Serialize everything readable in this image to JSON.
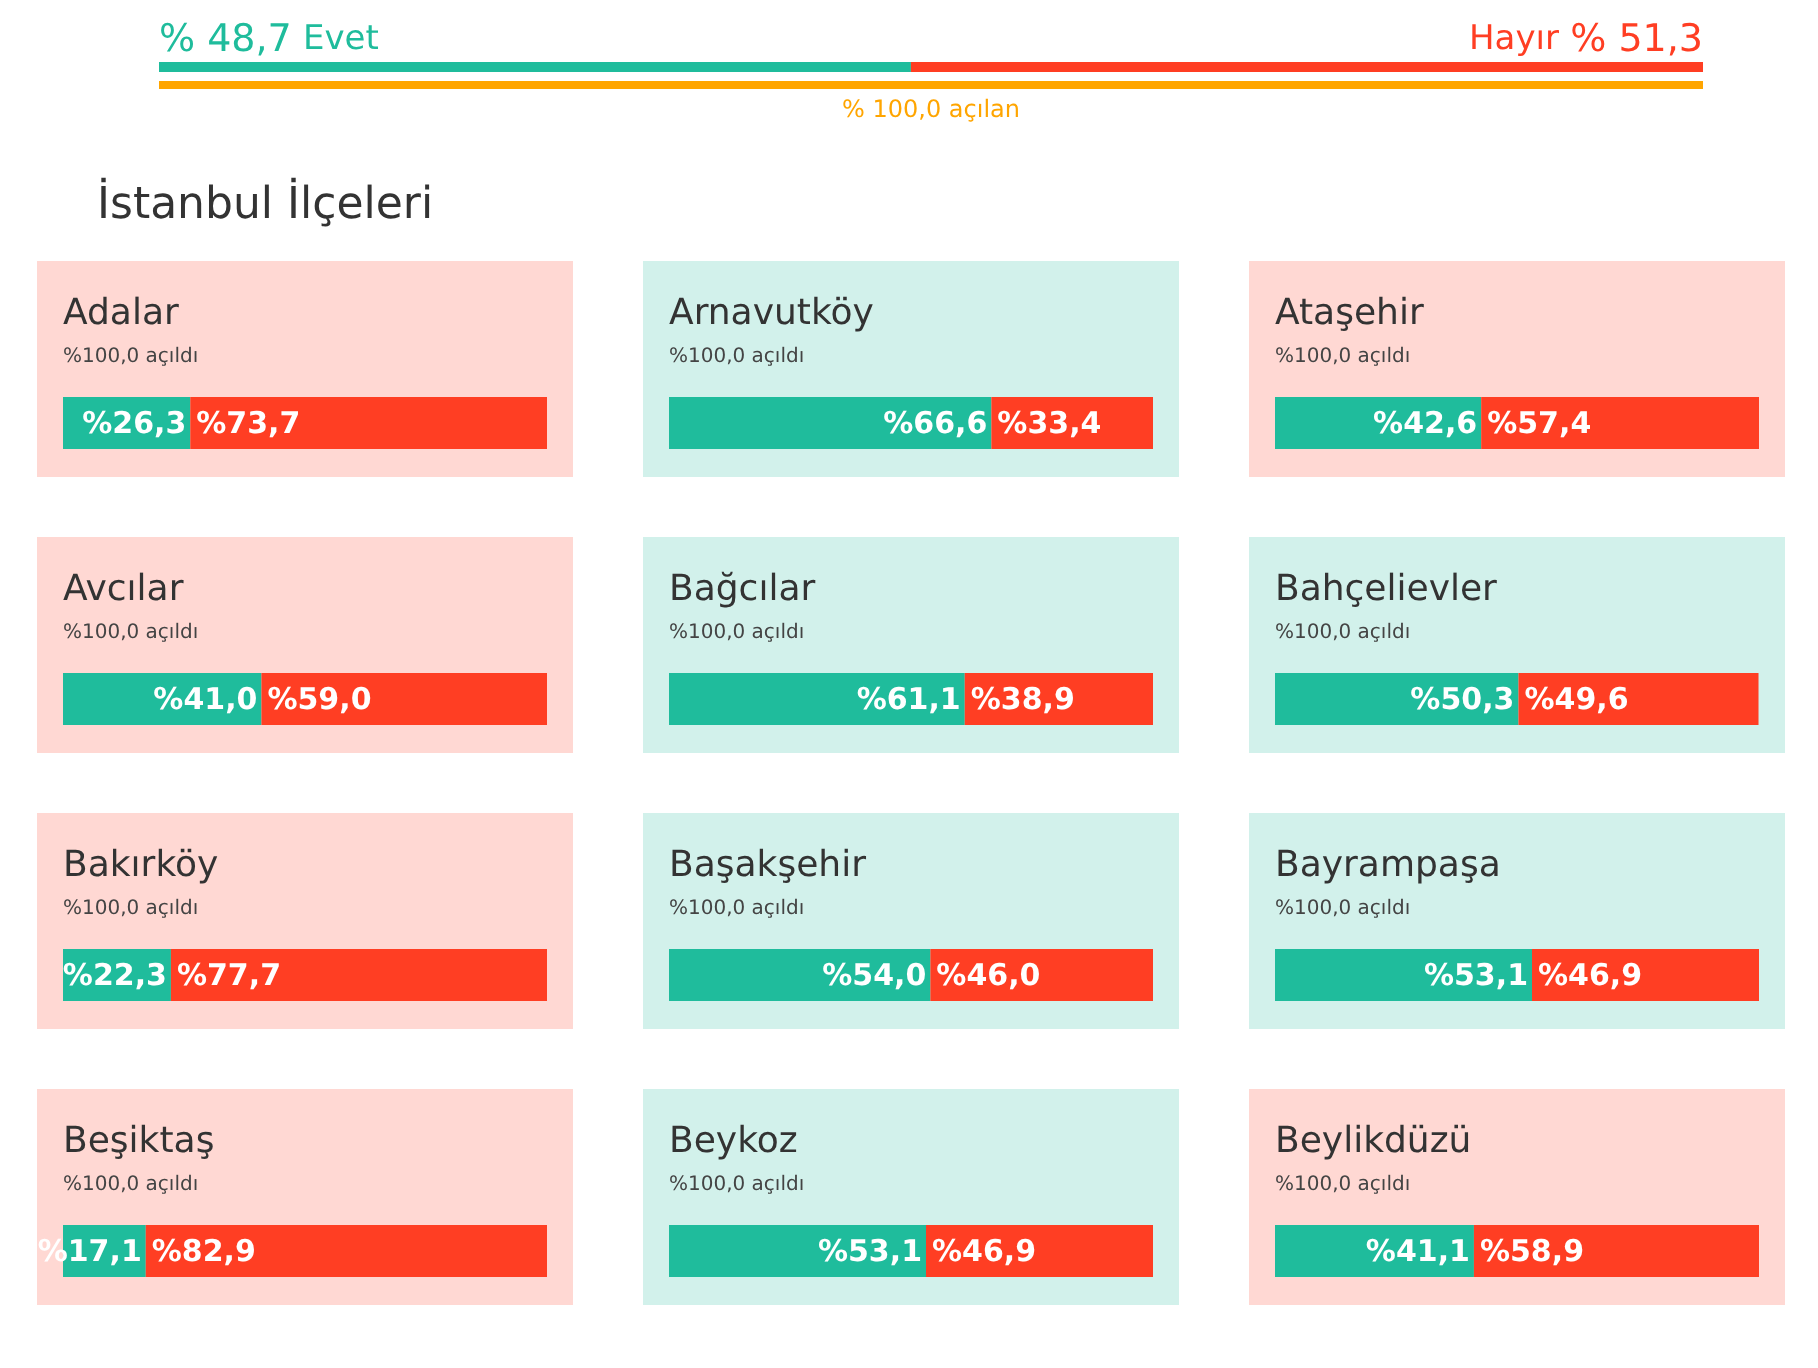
{
  "chart_data": [
    {
      "type": "bar",
      "orientation": "horizontal",
      "stacked": true,
      "categories": [
        null,
        null
      ],
      "xlim": [
        0,
        100
      ],
      "tick_labels": false,
      "annotations": [
        "İstanbul İlçeleri"
      ],
      "series": [
        {
          "name": "Evet",
          "color": "#1fbc9c",
          "values": [
            48.7,
            null
          ],
          "value_labels": [
            "% 48,7",
            null
          ]
        },
        {
          "name": "Hayır",
          "color": "#ff3e23",
          "values": [
            51.3,
            null
          ],
          "value_labels": [
            "% 51,3",
            null
          ]
        },
        {
          "color": "#ffa500",
          "values": [
            null,
            100
          ],
          "value_labels": [
            null,
            "% 100,0 açılan"
          ]
        }
      ]
    },
    {
      "type": "bar",
      "orientation": "horizontal",
      "stacked": true,
      "title": "Adalar",
      "subtitle": "%100,0 açıldı",
      "categories": [
        null
      ],
      "xlim": [
        0,
        100
      ],
      "tick_labels": false,
      "series": [
        {
          "color": "#1fbc9c",
          "values": [
            26.3
          ],
          "value_labels": [
            "%26,3"
          ]
        },
        {
          "color": "#ff3e23",
          "values": [
            73.7
          ],
          "value_labels": [
            "%73,7"
          ]
        }
      ]
    },
    {
      "type": "bar",
      "orientation": "horizontal",
      "stacked": true,
      "title": "Arnavutköy",
      "subtitle": "%100,0 açıldı",
      "categories": [
        null
      ],
      "xlim": [
        0,
        100
      ],
      "tick_labels": false,
      "series": [
        {
          "color": "#1fbc9c",
          "values": [
            66.6
          ],
          "value_labels": [
            "%66,6"
          ]
        },
        {
          "color": "#ff3e23",
          "values": [
            33.4
          ],
          "value_labels": [
            "%33,4"
          ]
        }
      ]
    },
    {
      "type": "bar",
      "orientation": "horizontal",
      "stacked": true,
      "title": "Ataşehir",
      "subtitle": "%100,0 açıldı",
      "categories": [
        null
      ],
      "xlim": [
        0,
        100
      ],
      "tick_labels": false,
      "series": [
        {
          "color": "#1fbc9c",
          "values": [
            42.6
          ],
          "value_labels": [
            "%42,6"
          ]
        },
        {
          "color": "#ff3e23",
          "values": [
            57.4
          ],
          "value_labels": [
            "%57,4"
          ]
        }
      ]
    },
    {
      "type": "bar",
      "orientation": "horizontal",
      "stacked": true,
      "title": "Avcılar",
      "subtitle": "%100,0 açıldı",
      "categories": [
        null
      ],
      "xlim": [
        0,
        100
      ],
      "tick_labels": false,
      "series": [
        {
          "color": "#1fbc9c",
          "values": [
            41.0
          ],
          "value_labels": [
            "%41,0"
          ]
        },
        {
          "color": "#ff3e23",
          "values": [
            59.0
          ],
          "value_labels": [
            "%59,0"
          ]
        }
      ]
    },
    {
      "type": "bar",
      "orientation": "horizontal",
      "stacked": true,
      "title": "Bağcılar",
      "subtitle": "%100,0 açıldı",
      "categories": [
        null
      ],
      "xlim": [
        0,
        100
      ],
      "tick_labels": false,
      "series": [
        {
          "color": "#1fbc9c",
          "values": [
            61.1
          ],
          "value_labels": [
            "%61,1"
          ]
        },
        {
          "color": "#ff3e23",
          "values": [
            38.9
          ],
          "value_labels": [
            "%38,9"
          ]
        }
      ]
    },
    {
      "type": "bar",
      "orientation": "horizontal",
      "stacked": true,
      "title": "Bahçelievler",
      "subtitle": "%100,0 açıldı",
      "categories": [
        null
      ],
      "xlim": [
        0,
        100
      ],
      "tick_labels": false,
      "series": [
        {
          "color": "#1fbc9c",
          "values": [
            50.3
          ],
          "value_labels": [
            "%50,3"
          ]
        },
        {
          "color": "#ff3e23",
          "values": [
            49.6
          ],
          "value_labels": [
            "%49,6"
          ]
        }
      ]
    },
    {
      "type": "bar",
      "orientation": "horizontal",
      "stacked": true,
      "title": "Bakırköy",
      "subtitle": "%100,0 açıldı",
      "categories": [
        null
      ],
      "xlim": [
        0,
        100
      ],
      "tick_labels": false,
      "series": [
        {
          "color": "#1fbc9c",
          "values": [
            22.3
          ],
          "value_labels": [
            "%22,3"
          ]
        },
        {
          "color": "#ff3e23",
          "values": [
            77.7
          ],
          "value_labels": [
            "%77,7"
          ]
        }
      ]
    },
    {
      "type": "bar",
      "orientation": "horizontal",
      "stacked": true,
      "title": "Başakşehir",
      "subtitle": "%100,0 açıldı",
      "categories": [
        null
      ],
      "xlim": [
        0,
        100
      ],
      "tick_labels": false,
      "series": [
        {
          "color": "#1fbc9c",
          "values": [
            54.0
          ],
          "value_labels": [
            "%54,0"
          ]
        },
        {
          "color": "#ff3e23",
          "values": [
            46.0
          ],
          "value_labels": [
            "%46,0"
          ]
        }
      ]
    },
    {
      "type": "bar",
      "orientation": "horizontal",
      "stacked": true,
      "title": "Bayrampaşa",
      "subtitle": "%100,0 açıldı",
      "categories": [
        null
      ],
      "xlim": [
        0,
        100
      ],
      "tick_labels": false,
      "series": [
        {
          "color": "#1fbc9c",
          "values": [
            53.1
          ],
          "value_labels": [
            "%53,1"
          ]
        },
        {
          "color": "#ff3e23",
          "values": [
            46.9
          ],
          "value_labels": [
            "%46,9"
          ]
        }
      ]
    },
    {
      "type": "bar",
      "orientation": "horizontal",
      "stacked": true,
      "title": "Beşiktaş",
      "subtitle": "%100,0 açıldı",
      "categories": [
        null
      ],
      "xlim": [
        0,
        100
      ],
      "tick_labels": false,
      "series": [
        {
          "color": "#1fbc9c",
          "values": [
            17.1
          ],
          "value_labels": [
            "%17,1"
          ]
        },
        {
          "color": "#ff3e23",
          "values": [
            82.9
          ],
          "value_labels": [
            "%82,9"
          ]
        }
      ]
    },
    {
      "type": "bar",
      "orientation": "horizontal",
      "stacked": true,
      "title": "Beykoz",
      "subtitle": "%100,0 açıldı",
      "categories": [
        null
      ],
      "xlim": [
        0,
        100
      ],
      "tick_labels": false,
      "series": [
        {
          "color": "#1fbc9c",
          "values": [
            53.1
          ],
          "value_labels": [
            "%53,1"
          ]
        },
        {
          "color": "#ff3e23",
          "values": [
            46.9
          ],
          "value_labels": [
            "%46,9"
          ]
        }
      ]
    },
    {
      "type": "bar",
      "orientation": "horizontal",
      "stacked": true,
      "title": "Beylikdüzü",
      "subtitle": "%100,0 açıldı",
      "categories": [
        null
      ],
      "xlim": [
        0,
        100
      ],
      "tick_labels": false,
      "series": [
        {
          "color": "#1fbc9c",
          "values": [
            41.1
          ],
          "value_labels": [
            "%41,1"
          ]
        },
        {
          "color": "#ff3e23",
          "values": [
            58.9
          ],
          "value_labels": [
            "%58,9"
          ]
        }
      ]
    }
  ]
}
